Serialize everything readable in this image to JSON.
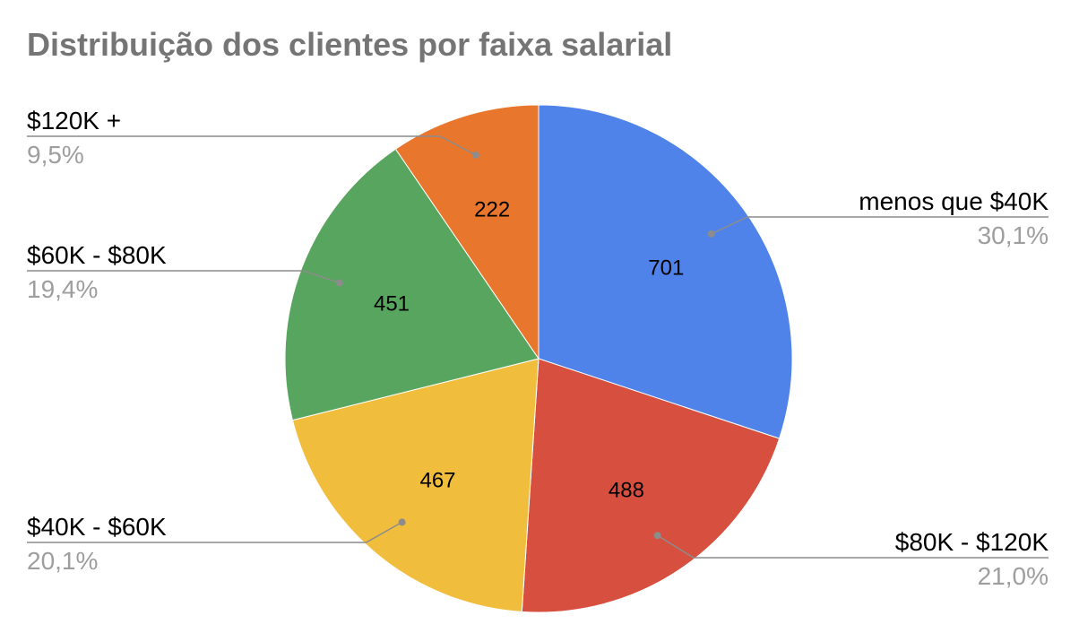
{
  "chart_data": {
    "type": "pie",
    "title": "Distribuição dos clientes por faixa salarial",
    "start_angle_deg": 0,
    "direction": "clockwise",
    "slices": [
      {
        "label": "menos que $40K",
        "value": 701,
        "value_label": "701",
        "percent_label": "30,1%",
        "color": "#5083E9"
      },
      {
        "label": "$80K - $120K",
        "value": 488,
        "value_label": "488",
        "percent_label": "21,0%",
        "color": "#D64F3F"
      },
      {
        "label": "$40K - $60K",
        "value": 467,
        "value_label": "467",
        "percent_label": "20,1%",
        "color": "#F1BD3D"
      },
      {
        "label": "$60K - $80K",
        "value": 451,
        "value_label": "451",
        "percent_label": "19,4%",
        "color": "#58A55F"
      },
      {
        "label": "$120K +",
        "value": 222,
        "value_label": "222",
        "percent_label": "9,5%",
        "color": "#E8762D"
      }
    ],
    "legend": "none",
    "colors": {
      "title": "#757575",
      "label": "#000000",
      "percent": "#9E9E9E",
      "leader": "#8C8C8C",
      "value": "#000000"
    }
  }
}
